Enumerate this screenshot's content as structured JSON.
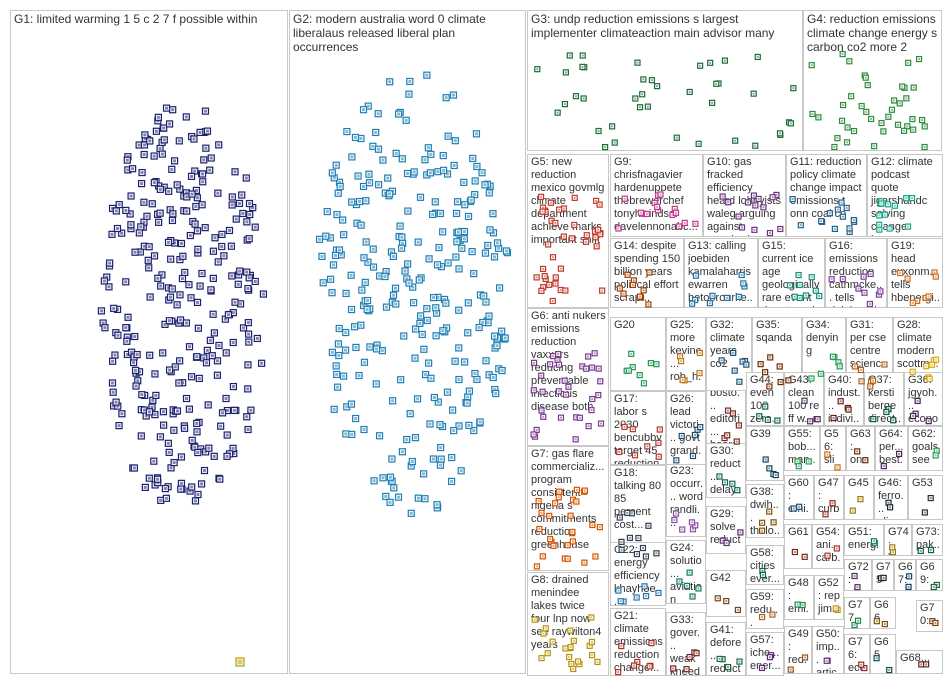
{
  "groups": [
    {
      "id": "G1",
      "label": "G1: limited warming 1 5 c 2 7 f possible within",
      "color": "#1a1f6e"
    },
    {
      "id": "G2",
      "label": "G2: modern australia word 0 climate liberalaus released liberal plan occurrences",
      "color": "#1f7fb4"
    },
    {
      "id": "G3",
      "label": "G3: undp reduction emissions s largest implementer climateaction main advisor many",
      "color": "#1e6b3a"
    },
    {
      "id": "G4",
      "label": "G4: reduction emissions climate change energy s carbon co2 more 2",
      "color": "#2e8b3d"
    },
    {
      "id": "G5",
      "label": "G5: new reduction mexico govmlg climate department achieve marks important shift",
      "color": "#c0392b"
    },
    {
      "id": "G6",
      "label": "G6: anti nukers emissions reduction vaxxers reducing preventable infectious disease both",
      "color": "#7a3b8f"
    },
    {
      "id": "G7",
      "label": "G7: gas flare commercializ... program consistent nigeria s commitments reduction greenhouse",
      "color": "#d35400"
    },
    {
      "id": "G8",
      "label": "G8: drained menindee lakes twice four lnp now see raywilton4 years",
      "color": "#b7950b"
    },
    {
      "id": "G9",
      "label": "G9: chrisfnagavier hardenuppete thebrewerchef tonyhwindsor davelennonabc...",
      "color": "#c0398f"
    },
    {
      "id": "G10",
      "label": "G10: gas fracked efficiency heard lobbyists waleg arguing against standards...",
      "color": "#6c3483"
    },
    {
      "id": "G11",
      "label": "G11: reduction policy climate change impact emissions t onn coal co",
      "color": "#1f618d"
    },
    {
      "id": "G12",
      "label": "G12: climate podcast quote jigarshahdc solving change largest...",
      "color": "#17a589"
    },
    {
      "id": "G13",
      "label": "G13: calling joebiden kamalaharris ewarren betoorourke...",
      "color": "#2471a3"
    },
    {
      "id": "G14",
      "label": "G14: despite spending 150 billion years political effort scrap...",
      "color": "#a04000"
    },
    {
      "id": "G15",
      "label": "G15: current ice age geologically rare event threatened...",
      "color": "#148f77"
    },
    {
      "id": "G16",
      "label": "G16: emissions reduction cathmcke... tells dalebeugi...",
      "color": "#7d3c98"
    },
    {
      "id": "G17",
      "label": "G17: labor s 2030 bencubby target 45 reduction...",
      "color": "#b03a2e"
    },
    {
      "id": "G18",
      "label": "G18: talking 80 85 percent cost...",
      "color": "#2e4053"
    },
    {
      "id": "G19",
      "label": "G19: head exxonm... tells hbenergi...",
      "color": "#ca6f1e"
    },
    {
      "id": "G20",
      "label": "G20",
      "color": "#229954"
    },
    {
      "id": "G21",
      "label": "G21: climate emissions reduction change...",
      "color": "#a93226"
    },
    {
      "id": "G22",
      "label": "G22: energy efficiency khayhoe...",
      "color": "#2874a6"
    },
    {
      "id": "G23",
      "label": "G23: occurr... word randli...",
      "color": "#884ea0"
    },
    {
      "id": "G24",
      "label": "G24: solutio... aviation renew... jet...",
      "color": "#117a65"
    },
    {
      "id": "G25",
      "label": "G25: more kevinc... rob_h... beisg...",
      "color": "#b9770e"
    },
    {
      "id": "G26",
      "label": "G26: lead victori... govt grand...",
      "color": "#1b4f72"
    },
    {
      "id": "G27",
      "label": "G27: bosto... editori... board agree...",
      "color": "#78281f"
    },
    {
      "id": "G28",
      "label": "G28: climate modern scottm...",
      "color": "#d4ac0d"
    },
    {
      "id": "G29",
      "label": "G29: solve reduct... emissi...",
      "color": "#5b2c6f"
    },
    {
      "id": "G30",
      "label": "G30: reduct... delay... action...",
      "color": "#0e6655"
    },
    {
      "id": "G31",
      "label": "G31: per cse centre scienc...",
      "color": "#af601a"
    },
    {
      "id": "G32",
      "label": "G32: climate years co2",
      "color": "#1a5276"
    },
    {
      "id": "G33",
      "label": "G33: gover... weak kneed...",
      "color": "#7b241c"
    },
    {
      "id": "G34",
      "label": "G34: denying",
      "color": "#239b56"
    },
    {
      "id": "G35",
      "label": "G35: sqanda",
      "color": "#6e2c00"
    },
    {
      "id": "G36",
      "label": "G36: jgyoh... econo... lincol...",
      "color": "#4a235a"
    },
    {
      "id": "G37",
      "label": "G37: kersti berge direct...",
      "color": "#0b5345"
    },
    {
      "id": "G38",
      "label": "G38: dwih... thelo... redu...",
      "color": "#7e5109"
    },
    {
      "id": "G39",
      "label": "G39",
      "color": "#154360"
    },
    {
      "id": "G40",
      "label": "G40: indust... indivi... respo...",
      "color": "#641e16"
    },
    {
      "id": "G41",
      "label": "G41: defore... reduct...",
      "color": "#186a3b"
    },
    {
      "id": "G42",
      "label": "G42",
      "color": "#784212"
    },
    {
      "id": "G43",
      "label": "G43: clean 100 re ff w...",
      "color": "#512e5f"
    },
    {
      "id": "G44",
      "label": "G44: even 100 zero...",
      "color": "#0e6251"
    },
    {
      "id": "G45",
      "label": "G45",
      "color": "#9a7d0a"
    },
    {
      "id": "G46",
      "label": "G46: ferro... clim...",
      "color": "#1b2631"
    },
    {
      "id": "G47",
      "label": "G47: curb... carb...",
      "color": "#922b21"
    },
    {
      "id": "G48",
      "label": "G48: emi... aust...",
      "color": "#1e8449"
    },
    {
      "id": "G49",
      "label": "G49: red... ...",
      "color": "#935116"
    },
    {
      "id": "G50",
      "label": "G50: imp... artic...",
      "color": "#6c3483"
    },
    {
      "id": "G51",
      "label": "G51: energ...",
      "color": "#117864"
    },
    {
      "id": "G52",
      "label": "G52: rep jim...",
      "color": "#b7950b"
    },
    {
      "id": "G53",
      "label": "G53",
      "color": "#212f3d"
    },
    {
      "id": "G54",
      "label": "G54: ani... carb...",
      "color": "#a93226"
    },
    {
      "id": "G55",
      "label": "G55: bob... man...",
      "color": "#229954"
    },
    {
      "id": "G56",
      "label": "G56: slim... olad...",
      "color": "#ca6f1e"
    },
    {
      "id": "G57",
      "label": "G57: iche... ener...",
      "color": "#5b2c6f"
    },
    {
      "id": "G58",
      "label": "G58: cities ever...",
      "color": "#0e6655"
    },
    {
      "id": "G59",
      "label": "G59: redu... glob...",
      "color": "#af601a"
    },
    {
      "id": "G60",
      "label": "G60: emi... s",
      "color": "#1a5276"
    },
    {
      "id": "G61",
      "label": "G61",
      "color": "#7b241c"
    },
    {
      "id": "G62",
      "label": "G62: goals see",
      "color": "#239b56"
    },
    {
      "id": "G63",
      "label": "G63: one",
      "color": "#6e2c00"
    },
    {
      "id": "G64",
      "label": "G64: per... best...",
      "color": "#4a235a"
    },
    {
      "id": "G65",
      "label": "G65",
      "color": "#0b5345"
    },
    {
      "id": "G66",
      "label": "G66",
      "color": "#7e5109"
    },
    {
      "id": "G67",
      "label": "G67: wo... em...",
      "color": "#154360"
    },
    {
      "id": "G68",
      "label": "G68...",
      "color": "#641e16"
    },
    {
      "id": "G69",
      "label": "G69: go... tre...",
      "color": "#186a3b"
    },
    {
      "id": "G70",
      "label": "G70: way co...",
      "color": "#784212"
    },
    {
      "id": "G72",
      "label": "G72: cli...",
      "color": "#512e5f"
    },
    {
      "id": "G73",
      "label": "G73: pak...",
      "color": "#0e6251"
    },
    {
      "id": "G74",
      "label": "G74: lnp...",
      "color": "#9a7d0a"
    },
    {
      "id": "G75",
      "label": "G75",
      "color": "#1b2631"
    },
    {
      "id": "G76",
      "label": "G76: eco...",
      "color": "#922b21"
    },
    {
      "id": "G77",
      "label": "G77",
      "color": "#1e8449"
    }
  ]
}
